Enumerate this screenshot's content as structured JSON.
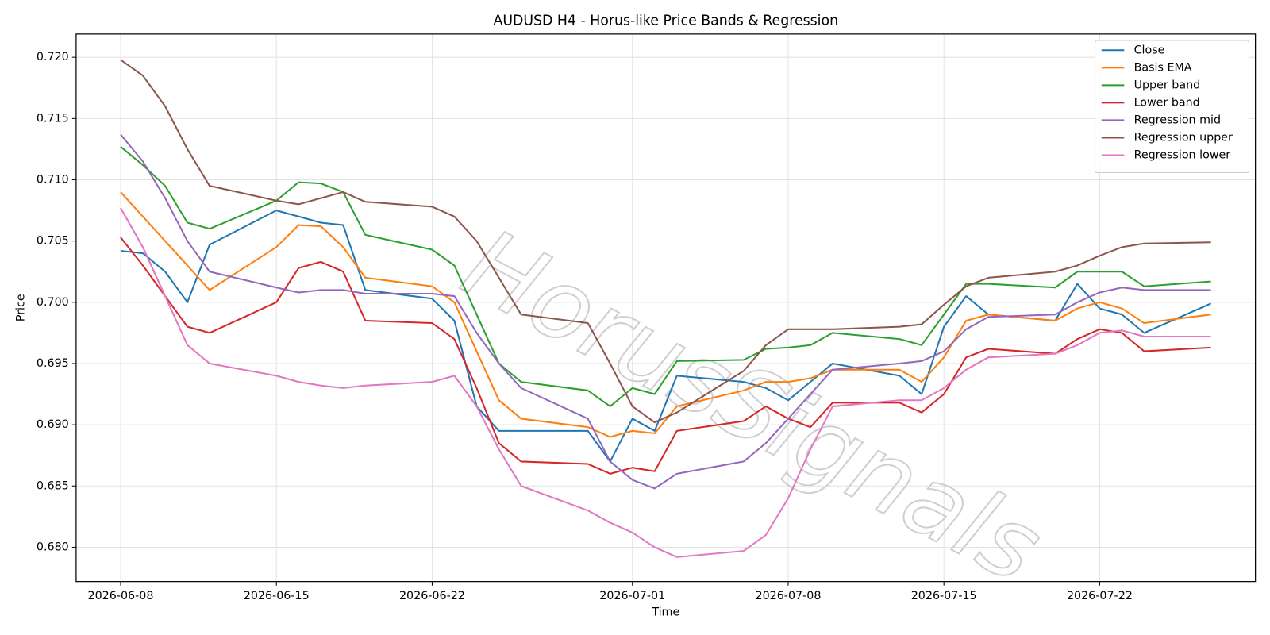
{
  "chart_data": {
    "type": "line",
    "title": "AUDUSD H4 - Horus-like Price Bands & Regression",
    "xlabel": "Time",
    "ylabel": "Price",
    "watermark": "HorusSignals",
    "x": [
      "2026-06-08",
      "2026-06-09",
      "2026-06-10",
      "2026-06-11",
      "2026-06-12",
      "2026-06-15",
      "2026-06-16",
      "2026-06-17",
      "2026-06-18",
      "2026-06-19",
      "2026-06-22",
      "2026-06-23",
      "2026-06-24",
      "2026-06-25",
      "2026-06-26",
      "2026-06-29",
      "2026-06-30",
      "2026-07-01",
      "2026-07-02",
      "2026-07-03",
      "2026-07-06",
      "2026-07-07",
      "2026-07-08",
      "2026-07-09",
      "2026-07-10",
      "2026-07-13",
      "2026-07-14",
      "2026-07-15",
      "2026-07-16",
      "2026-07-17",
      "2026-07-20",
      "2026-07-21",
      "2026-07-22",
      "2026-07-23",
      "2026-07-24",
      "2026-07-27"
    ],
    "series": [
      {
        "name": "Close",
        "color": "#1f77b4",
        "values": [
          0.7042,
          0.704,
          0.7025,
          0.7,
          0.7047,
          0.7075,
          0.707,
          0.7065,
          0.7063,
          0.701,
          0.7003,
          0.6985,
          0.6915,
          0.6895,
          0.6895,
          0.6895,
          0.687,
          0.6905,
          0.6895,
          0.694,
          0.6935,
          0.693,
          0.692,
          0.6935,
          0.695,
          0.694,
          0.6925,
          0.698,
          0.7005,
          0.699,
          0.6985,
          0.7015,
          0.6995,
          0.699,
          0.6975,
          0.6999
        ]
      },
      {
        "name": "Basis EMA",
        "color": "#ff7f0e",
        "values": [
          0.709,
          0.707,
          0.705,
          0.703,
          0.701,
          0.7045,
          0.7063,
          0.7062,
          0.7045,
          0.702,
          0.7013,
          0.7,
          0.696,
          0.692,
          0.6905,
          0.6898,
          0.689,
          0.6895,
          0.6893,
          0.6915,
          0.6928,
          0.6935,
          0.6935,
          0.6938,
          0.6945,
          0.6945,
          0.6935,
          0.6955,
          0.6985,
          0.699,
          0.6985,
          0.6995,
          0.7,
          0.6995,
          0.6983,
          0.699
        ]
      },
      {
        "name": "Upper band",
        "color": "#2ca02c",
        "values": [
          0.7127,
          0.7112,
          0.7095,
          0.7065,
          0.706,
          0.7083,
          0.7098,
          0.7097,
          0.709,
          0.7055,
          0.7043,
          0.703,
          0.699,
          0.695,
          0.6935,
          0.6928,
          0.6915,
          0.693,
          0.6925,
          0.6952,
          0.6953,
          0.6962,
          0.6963,
          0.6965,
          0.6975,
          0.697,
          0.6965,
          0.699,
          0.7015,
          0.7015,
          0.7012,
          0.7025,
          0.7025,
          0.7025,
          0.7013,
          0.7017
        ]
      },
      {
        "name": "Lower band",
        "color": "#d62728",
        "values": [
          0.7053,
          0.703,
          0.7005,
          0.698,
          0.6975,
          0.7,
          0.7028,
          0.7033,
          0.7025,
          0.6985,
          0.6983,
          0.697,
          0.693,
          0.6885,
          0.687,
          0.6868,
          0.686,
          0.6865,
          0.6862,
          0.6895,
          0.6903,
          0.6915,
          0.6905,
          0.6898,
          0.6918,
          0.6918,
          0.691,
          0.6925,
          0.6955,
          0.6962,
          0.6958,
          0.697,
          0.6978,
          0.6975,
          0.696,
          0.6963
        ]
      },
      {
        "name": "Regression mid",
        "color": "#9467bd",
        "values": [
          0.7137,
          0.7115,
          0.7085,
          0.705,
          0.7025,
          0.7012,
          0.7008,
          0.701,
          0.701,
          0.7007,
          0.7007,
          0.7005,
          0.6975,
          0.695,
          0.693,
          0.6905,
          0.687,
          0.6855,
          0.6848,
          0.686,
          0.687,
          0.6885,
          0.6905,
          0.6925,
          0.6945,
          0.695,
          0.6952,
          0.696,
          0.6978,
          0.6988,
          0.699,
          0.7,
          0.7008,
          0.7012,
          0.701,
          0.701
        ]
      },
      {
        "name": "Regression upper",
        "color": "#8c564b",
        "values": [
          0.7198,
          0.7185,
          0.716,
          0.7125,
          0.7095,
          0.7083,
          0.708,
          0.7085,
          0.709,
          0.7082,
          0.7078,
          0.707,
          0.705,
          0.702,
          0.699,
          0.6983,
          0.695,
          0.6915,
          0.6902,
          0.691,
          0.6944,
          0.6965,
          0.6978,
          0.6978,
          0.6978,
          0.698,
          0.6982,
          0.6998,
          0.7013,
          0.702,
          0.7025,
          0.703,
          0.7038,
          0.7045,
          0.7048,
          0.7049
        ]
      },
      {
        "name": "Regression lower",
        "color": "#e377c2",
        "values": [
          0.7077,
          0.7045,
          0.7005,
          0.6965,
          0.695,
          0.694,
          0.6935,
          0.6932,
          0.693,
          0.6932,
          0.6935,
          0.694,
          0.6915,
          0.688,
          0.685,
          0.683,
          0.682,
          0.6812,
          0.68,
          0.6792,
          0.6797,
          0.681,
          0.684,
          0.688,
          0.6915,
          0.692,
          0.692,
          0.693,
          0.6945,
          0.6955,
          0.6958,
          0.6965,
          0.6975,
          0.6977,
          0.6972,
          0.6972
        ]
      }
    ],
    "xlim": [
      "2026-06-06",
      "2026-07-29"
    ],
    "xticks": [
      "2026-06-08",
      "2026-06-15",
      "2026-06-22",
      "2026-07-01",
      "2026-07-08",
      "2026-07-15",
      "2026-07-22"
    ],
    "ylim": [
      0.6772,
      0.7219
    ],
    "yticks": [
      {
        "value": 0.68,
        "label": "0.680"
      },
      0.685,
      {
        "value": 0.69,
        "label": "0.690"
      },
      0.695,
      {
        "value": 0.7,
        "label": "0.700"
      },
      0.705,
      {
        "value": 0.71,
        "label": "0.710"
      },
      0.715,
      {
        "value": 0.72,
        "label": "0.720"
      }
    ],
    "grid": true,
    "legend": "upper right"
  }
}
